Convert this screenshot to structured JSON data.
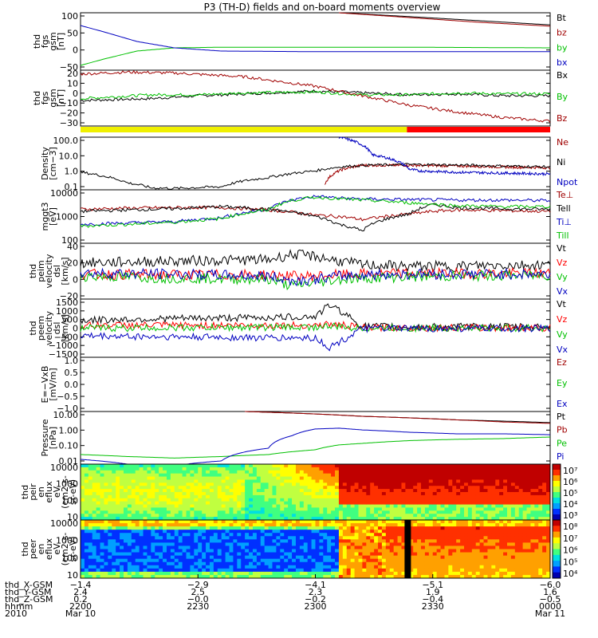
{
  "title": "P3 (TH-D) fields and on-board moments overview",
  "chart_data": [
    {
      "id": "fgs_gsm_1",
      "type": "line",
      "ylabel": [
        "thd",
        "fgs",
        "gsm",
        "[nT]"
      ],
      "yticks": [
        "100",
        "50",
        "0",
        "−50"
      ],
      "ylim": [
        -70,
        110
      ],
      "series": [
        {
          "name": "Bt",
          "color": "#000000",
          "x": [
            0.55,
            0.7,
            0.85,
            1.0
          ],
          "values": [
            110,
            98,
            85,
            72
          ]
        },
        {
          "name": "bz",
          "color": "#a00000",
          "x": [
            0.55,
            0.7,
            0.85,
            1.0
          ],
          "values": [
            110,
            95,
            80,
            68
          ]
        },
        {
          "name": "by",
          "color": "#00c000",
          "x": [
            0.0,
            0.05,
            0.12,
            0.2,
            0.3,
            0.5,
            0.7,
            0.85,
            1.0
          ],
          "values": [
            -55,
            -35,
            -10,
            0,
            2,
            2,
            2,
            1,
            0
          ]
        },
        {
          "name": "bx",
          "color": "#0000c0",
          "x": [
            0.0,
            0.05,
            0.12,
            0.2,
            0.3,
            0.5,
            0.7,
            0.85,
            1.0
          ],
          "values": [
            70,
            50,
            20,
            0,
            -10,
            -12,
            -12,
            -12,
            -12
          ]
        }
      ]
    },
    {
      "id": "fgs_gsm_2",
      "type": "line",
      "ylabel": [
        "thd",
        "fgs",
        "gsm",
        "[nT]"
      ],
      "yticks": [
        "20",
        "10",
        "0",
        "−10",
        "−20",
        "−30"
      ],
      "ylim": [
        -37,
        22
      ],
      "series": [
        {
          "name": "Bx",
          "color": "#000000",
          "x": [
            0.0,
            0.15,
            0.25,
            0.35,
            0.5,
            0.6,
            0.7,
            0.8,
            0.9,
            1.0
          ],
          "values": [
            -10,
            -8,
            -5,
            -3,
            0,
            -2,
            -4,
            -3,
            -5,
            -5
          ]
        },
        {
          "name": "By",
          "color": "#00c000",
          "x": [
            0.0,
            0.15,
            0.25,
            0.35,
            0.5,
            0.6,
            0.7,
            0.8,
            0.9,
            1.0
          ],
          "values": [
            -8,
            -4,
            -4,
            -2,
            -1,
            -4,
            -4,
            -2,
            -3,
            -3
          ]
        },
        {
          "name": "Bz",
          "color": "#a00000",
          "x": [
            0.0,
            0.1,
            0.2,
            0.35,
            0.5,
            0.6,
            0.7,
            0.8,
            0.9,
            1.0
          ],
          "values": [
            18,
            20,
            19,
            15,
            5,
            -5,
            -15,
            -22,
            -28,
            -32
          ]
        }
      ]
    },
    {
      "id": "status_bar",
      "type": "bar",
      "segments": [
        {
          "from": 0.0,
          "to": 0.695,
          "color": "#f0f000"
        },
        {
          "from": 0.695,
          "to": 1.0,
          "color": "#ff0000"
        }
      ]
    },
    {
      "id": "density",
      "type": "line",
      "ylabel": [
        "Density",
        "[cm−3]"
      ],
      "yticks": [
        "100.0",
        "10.0",
        "1.0",
        "0.1"
      ],
      "ylog": true,
      "ylim": [
        0.1,
        100
      ],
      "series": [
        {
          "name": "Ne",
          "color": "#a00000",
          "x": [
            0.52,
            0.56,
            0.6,
            0.65,
            0.7,
            0.8,
            0.9,
            1.0
          ],
          "values": [
            0.2,
            1.5,
            2.5,
            2.5,
            2.5,
            2.3,
            2.0,
            1.8
          ]
        },
        {
          "name": "Ni",
          "color": "#000000",
          "x": [
            0.0,
            0.05,
            0.1,
            0.15,
            0.2,
            0.3,
            0.4,
            0.5,
            0.55,
            0.6,
            0.7,
            0.8,
            0.9,
            1.0
          ],
          "values": [
            1.0,
            0.6,
            0.25,
            0.13,
            0.12,
            0.15,
            0.5,
            1.2,
            2.0,
            2.5,
            2.8,
            2.6,
            2.3,
            2.0
          ]
        },
        {
          "name": "Npot",
          "color": "#0000c0",
          "x": [
            0.55,
            0.62,
            0.7,
            0.72,
            0.8,
            0.9,
            1.0
          ],
          "values": [
            100,
            10,
            1.5,
            1.2,
            1.0,
            0.9,
            0.8
          ]
        }
      ]
    },
    {
      "id": "temperature",
      "type": "line",
      "ylabel": [
        "mggt3",
        "[eV]"
      ],
      "yticks": [
        "10000",
        "1000",
        "100"
      ],
      "ylog": true,
      "ylim": [
        40,
        12000
      ],
      "series": [
        {
          "name": "Te⊥",
          "color": "#a00000",
          "x": [
            0.0,
            0.1,
            0.2,
            0.3,
            0.4,
            0.5,
            0.55,
            0.6,
            0.7,
            0.75,
            0.8,
            0.9,
            1.0
          ],
          "values": [
            1500,
            1700,
            1800,
            1800,
            1400,
            800,
            700,
            500,
            900,
            1200,
            1400,
            1300,
            1200
          ]
        },
        {
          "name": "Tell",
          "color": "#000000",
          "x": [
            0.0,
            0.1,
            0.2,
            0.3,
            0.4,
            0.5,
            0.55,
            0.6,
            0.7,
            0.75,
            0.8,
            0.9,
            1.0
          ],
          "values": [
            1200,
            1400,
            1600,
            2000,
            1500,
            700,
            300,
            150,
            900,
            2500,
            1800,
            1600,
            1500
          ]
        },
        {
          "name": "Ti⊥",
          "color": "#0000c0",
          "x": [
            0.0,
            0.1,
            0.2,
            0.3,
            0.4,
            0.45,
            0.5,
            0.55,
            0.6,
            0.7,
            0.8,
            0.9,
            1.0
          ],
          "values": [
            300,
            350,
            400,
            600,
            1500,
            4000,
            6000,
            5000,
            4500,
            4200,
            4000,
            4000,
            3800
          ]
        },
        {
          "name": "Till",
          "color": "#00c000",
          "x": [
            0.0,
            0.1,
            0.2,
            0.3,
            0.4,
            0.45,
            0.5,
            0.55,
            0.6,
            0.7,
            0.8,
            0.9,
            1.0
          ],
          "values": [
            250,
            300,
            380,
            550,
            1400,
            3800,
            5500,
            4600,
            4000,
            3000,
            2200,
            2000,
            2000
          ]
        }
      ]
    },
    {
      "id": "peim_velocity",
      "type": "line",
      "ylabel": [
        "thd",
        "peim",
        "velocity",
        "dsl",
        "[km/s]"
      ],
      "yticks": [
        "40",
        "20",
        "0",
        "−20"
      ],
      "ylim": [
        -40,
        45
      ],
      "series": [
        {
          "name": "Vt",
          "color": "#000000",
          "x": [
            0.0,
            0.2,
            0.4,
            0.45,
            0.5,
            0.55,
            0.6,
            0.7,
            0.8,
            0.9,
            1.0
          ],
          "values": [
            15,
            18,
            20,
            28,
            25,
            18,
            12,
            10,
            10,
            12,
            12
          ]
        },
        {
          "name": "Vz",
          "color": "#ff0000",
          "x": [
            0.0,
            0.2,
            0.4,
            0.45,
            0.5,
            0.55,
            0.6,
            0.7,
            0.8,
            0.9,
            1.0
          ],
          "values": [
            -2,
            -3,
            -3,
            -5,
            -5,
            -3,
            -2,
            -1,
            -1,
            -1,
            -1
          ]
        },
        {
          "name": "Vy",
          "color": "#00c000",
          "x": [
            0.0,
            0.2,
            0.4,
            0.45,
            0.5,
            0.55,
            0.6,
            0.7,
            0.8,
            0.9,
            1.0
          ],
          "values": [
            -5,
            -8,
            -10,
            -20,
            -15,
            -10,
            -8,
            -6,
            -5,
            -4,
            -4
          ]
        },
        {
          "name": "Vx",
          "color": "#0000c0",
          "x": [
            0.0,
            0.2,
            0.4,
            0.45,
            0.5,
            0.55,
            0.6,
            0.7,
            0.8,
            0.9,
            1.0
          ],
          "values": [
            0,
            -2,
            -5,
            -12,
            -10,
            -5,
            -3,
            -2,
            -2,
            -2,
            -2
          ]
        }
      ]
    },
    {
      "id": "peem_velocity",
      "type": "line",
      "ylabel": [
        "thd",
        "peem",
        "velocity",
        "dsl",
        "[km/s]"
      ],
      "yticks": [
        "1500",
        "1000",
        "500",
        "0",
        "−500",
        "−1000",
        "−1500"
      ],
      "ylim": [
        -1500,
        1500
      ],
      "series": [
        {
          "name": "Vt",
          "color": "#000000",
          "x": [
            0.0,
            0.2,
            0.4,
            0.5,
            0.53,
            0.56,
            0.6,
            0.7,
            0.8,
            0.9,
            1.0
          ],
          "values": [
            400,
            500,
            550,
            600,
            1200,
            800,
            100,
            80,
            80,
            80,
            80
          ]
        },
        {
          "name": "Vz",
          "color": "#ff0000",
          "x": [
            0.0,
            0.2,
            0.4,
            0.5,
            0.53,
            0.56,
            0.6,
            0.7,
            0.8,
            0.9,
            1.0
          ],
          "values": [
            150,
            150,
            150,
            150,
            200,
            150,
            20,
            20,
            20,
            20,
            20
          ]
        },
        {
          "name": "Vy",
          "color": "#00c000",
          "x": [
            0.0,
            0.2,
            0.4,
            0.5,
            0.53,
            0.56,
            0.6,
            0.7,
            0.8,
            0.9,
            1.0
          ],
          "values": [
            0,
            20,
            50,
            50,
            100,
            50,
            0,
            0,
            0,
            0,
            0
          ]
        },
        {
          "name": "Vx",
          "color": "#0000c0",
          "x": [
            0.0,
            0.2,
            0.4,
            0.5,
            0.53,
            0.56,
            0.6,
            0.7,
            0.8,
            0.9,
            1.0
          ],
          "values": [
            -400,
            -450,
            -500,
            -500,
            -1000,
            -600,
            -20,
            -20,
            -20,
            -20,
            -20
          ]
        }
      ]
    },
    {
      "id": "efield",
      "type": "line",
      "ylabel": [
        "E=−VxB",
        "[mV/m]"
      ],
      "yticks": [
        "1.0",
        "0.5",
        "0.0",
        "−0.5",
        "−1.0"
      ],
      "ylim": [
        -1,
        1
      ],
      "legend": [
        {
          "name": "Ez",
          "color": "#a00000"
        },
        {
          "name": "Ey",
          "color": "#00c000"
        },
        {
          "name": "Ex",
          "color": "#0000c0"
        }
      ],
      "series": []
    },
    {
      "id": "pressure",
      "type": "line",
      "ylabel": [
        "Pressure",
        "[nPa]"
      ],
      "yticks": [
        "10.00",
        "1.00",
        "0.10",
        "0.01"
      ],
      "ylog": true,
      "ylim": [
        0.005,
        10
      ],
      "series": [
        {
          "name": "Pt",
          "color": "#000000",
          "x": [
            0.35,
            0.5,
            0.6,
            0.7,
            0.8,
            0.9,
            1.0
          ],
          "values": [
            10,
            7,
            5,
            4,
            3,
            2.5,
            2
          ]
        },
        {
          "name": "Pb",
          "color": "#a00000",
          "x": [
            0.35,
            0.5,
            0.6,
            0.7,
            0.8,
            0.9,
            1.0
          ],
          "values": [
            10,
            7,
            5,
            4,
            3,
            2.2,
            1.8
          ]
        },
        {
          "name": "Pe",
          "color": "#00c000",
          "x": [
            0.0,
            0.1,
            0.2,
            0.3,
            0.4,
            0.5,
            0.55,
            0.6,
            0.7,
            0.8,
            0.9,
            1.0
          ],
          "values": [
            0.02,
            0.015,
            0.012,
            0.015,
            0.02,
            0.04,
            0.08,
            0.1,
            0.15,
            0.18,
            0.2,
            0.25
          ]
        },
        {
          "name": "Pi",
          "color": "#0000c0",
          "x": [
            0.0,
            0.1,
            0.2,
            0.3,
            0.4,
            0.45,
            0.5,
            0.55,
            0.6,
            0.7,
            0.8,
            0.9,
            1.0
          ],
          "values": [
            0.01,
            0.005,
            0.004,
            0.008,
            0.05,
            0.3,
            0.8,
            0.9,
            0.7,
            0.5,
            0.4,
            0.4,
            0.35
          ]
        }
      ]
    },
    {
      "id": "peir_spectrogram",
      "type": "heatmap",
      "ylabel": [
        "thd",
        "peir",
        "en",
        "eflux",
        "eV",
        "(cm2-s-",
        "sr-eV)"
      ],
      "yticks": [
        "10000",
        "1000",
        "100",
        "10"
      ],
      "colorbar": {
        "ticks": [
          "10⁷",
          "10⁶",
          "10⁵",
          "10⁴",
          "10³"
        ]
      }
    },
    {
      "id": "peer_spectrogram",
      "type": "heatmap",
      "ylabel": [
        "thd",
        "peer",
        "en",
        "eflux",
        "eV",
        "(cm2-s-",
        "sr-eV)"
      ],
      "yticks": [
        "10000",
        "1000",
        "100",
        "10"
      ],
      "colorbar": {
        "ticks": [
          "10⁸",
          "10⁷",
          "10⁶",
          "10⁵",
          "10⁴"
        ]
      }
    }
  ],
  "time_axis": {
    "rows": [
      {
        "label": "thd_X-GSM",
        "values": [
          "−1.4",
          "−2.9",
          "−4.1",
          "−5.1",
          "−6.0"
        ]
      },
      {
        "label": "thd_Y-GSM",
        "values": [
          "2.4",
          "2.5",
          "2.3",
          "1.9",
          "1.6"
        ]
      },
      {
        "label": "thd_Z-GSM",
        "values": [
          "0.2",
          "−0.0",
          "−0.2",
          "−0.4",
          "−0.5"
        ]
      },
      {
        "label": "hhmm",
        "values": [
          "2200",
          "2230",
          "2300",
          "2330",
          "0000"
        ]
      },
      {
        "label": "2010",
        "values": [
          "Mar 10",
          "",
          "",
          "",
          "Mar 11"
        ]
      }
    ]
  }
}
